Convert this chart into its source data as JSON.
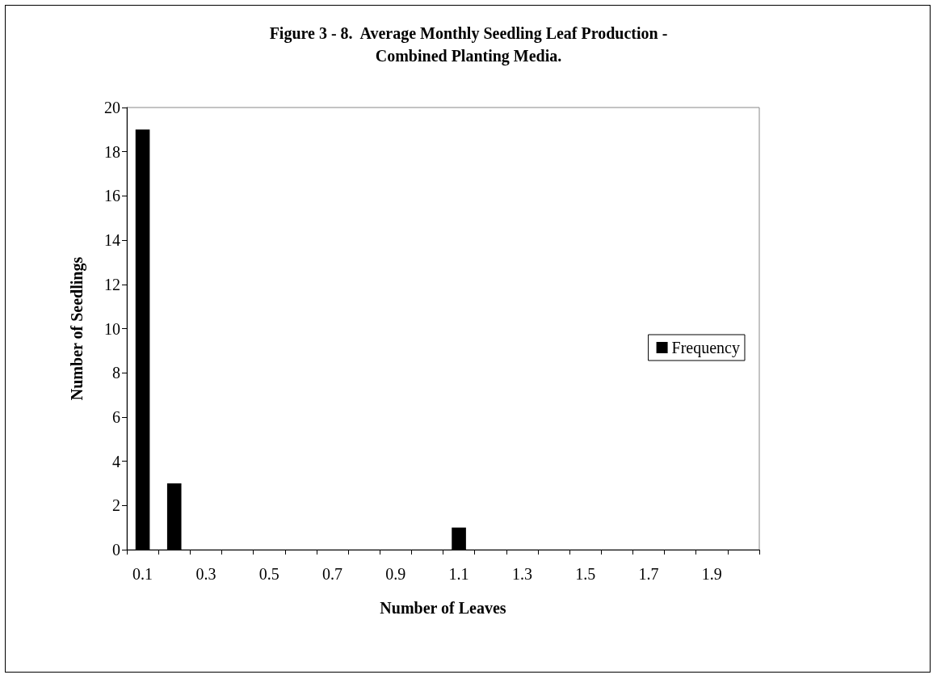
{
  "chart_data": {
    "type": "bar",
    "title": "Figure 3 - 8.  Average Monthly Seedling Leaf Production -\nCombined Planting Media.",
    "xlabel": "Number of Leaves",
    "ylabel": "Number of Seedlings",
    "categories": [
      "0.1",
      null,
      "0.3",
      null,
      "0.5",
      null,
      "0.7",
      null,
      "0.9",
      null,
      "1.1",
      null,
      "1.3",
      null,
      "1.5",
      null,
      "1.7",
      null,
      "1.9",
      null
    ],
    "series": [
      {
        "name": "Frequency",
        "color": "#000000",
        "values": [
          19,
          3,
          0,
          0,
          0,
          0,
          0,
          0,
          0,
          0,
          1,
          0,
          0,
          0,
          0,
          0,
          0,
          0,
          0,
          0
        ]
      }
    ],
    "ylim": [
      0,
      20
    ],
    "yticks": [
      0,
      2,
      4,
      6,
      8,
      10,
      12,
      14,
      16,
      18,
      20
    ],
    "grid": false,
    "legend": "right"
  }
}
